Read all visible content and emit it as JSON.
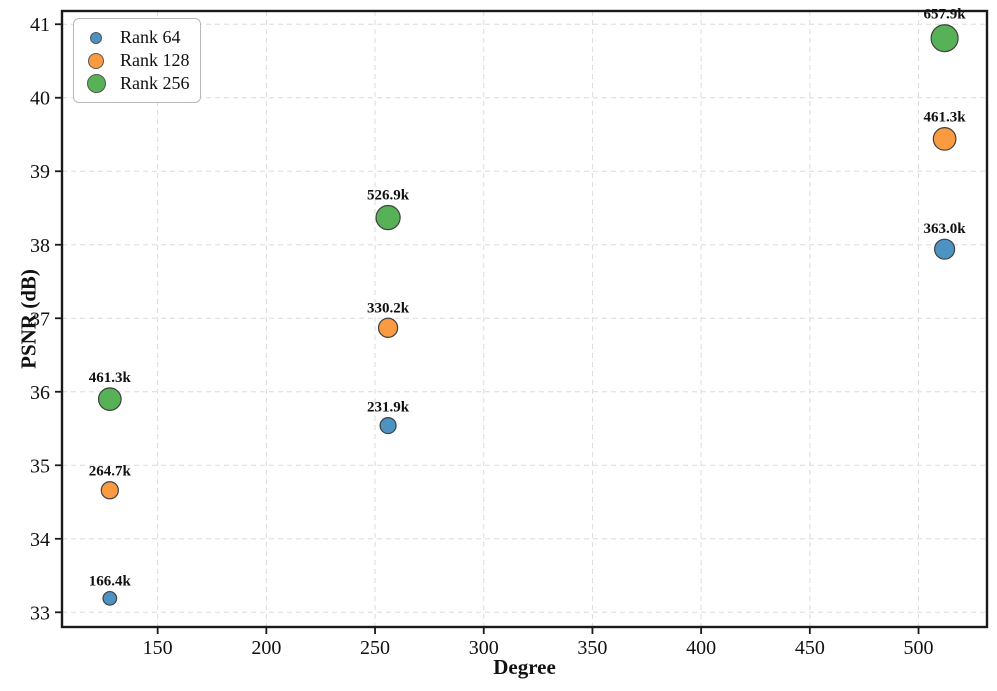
{
  "chart_data": {
    "type": "scatter",
    "title": "",
    "xlabel": "Degree",
    "ylabel": "PSNR (dB)",
    "xlim": [
      106,
      531.5
    ],
    "ylim": [
      32.8,
      41.18
    ],
    "x_ticks": [
      150,
      200,
      250,
      300,
      350,
      400,
      450,
      500
    ],
    "y_ticks": [
      33,
      34,
      35,
      36,
      37,
      38,
      39,
      40,
      41
    ],
    "grid": "dashed",
    "grid_color": "#dcdcdc",
    "legend_position": "upper-left",
    "marker_edge_color": "#404040",
    "series": [
      {
        "name": "Rank 64",
        "color": "#4c92c3",
        "points": [
          {
            "x": 128,
            "y": 33.19,
            "params_k": 166.4,
            "label": "166.4k"
          },
          {
            "x": 256,
            "y": 35.54,
            "params_k": 231.9,
            "label": "231.9k"
          },
          {
            "x": 512,
            "y": 37.94,
            "params_k": 363.0,
            "label": "363.0k"
          }
        ]
      },
      {
        "name": "Rank 128",
        "color": "#fb9b41",
        "points": [
          {
            "x": 128,
            "y": 34.66,
            "params_k": 264.7,
            "label": "264.7k"
          },
          {
            "x": 256,
            "y": 36.87,
            "params_k": 330.2,
            "label": "330.2k"
          },
          {
            "x": 512,
            "y": 39.44,
            "params_k": 461.3,
            "label": "461.3k"
          }
        ]
      },
      {
        "name": "Rank 256",
        "color": "#57b257",
        "points": [
          {
            "x": 128,
            "y": 35.9,
            "params_k": 461.3,
            "label": "461.3k"
          },
          {
            "x": 256,
            "y": 38.37,
            "params_k": 526.9,
            "label": "526.9k"
          },
          {
            "x": 512,
            "y": 40.81,
            "params_k": 657.9,
            "label": "657.9k"
          }
        ]
      }
    ]
  }
}
